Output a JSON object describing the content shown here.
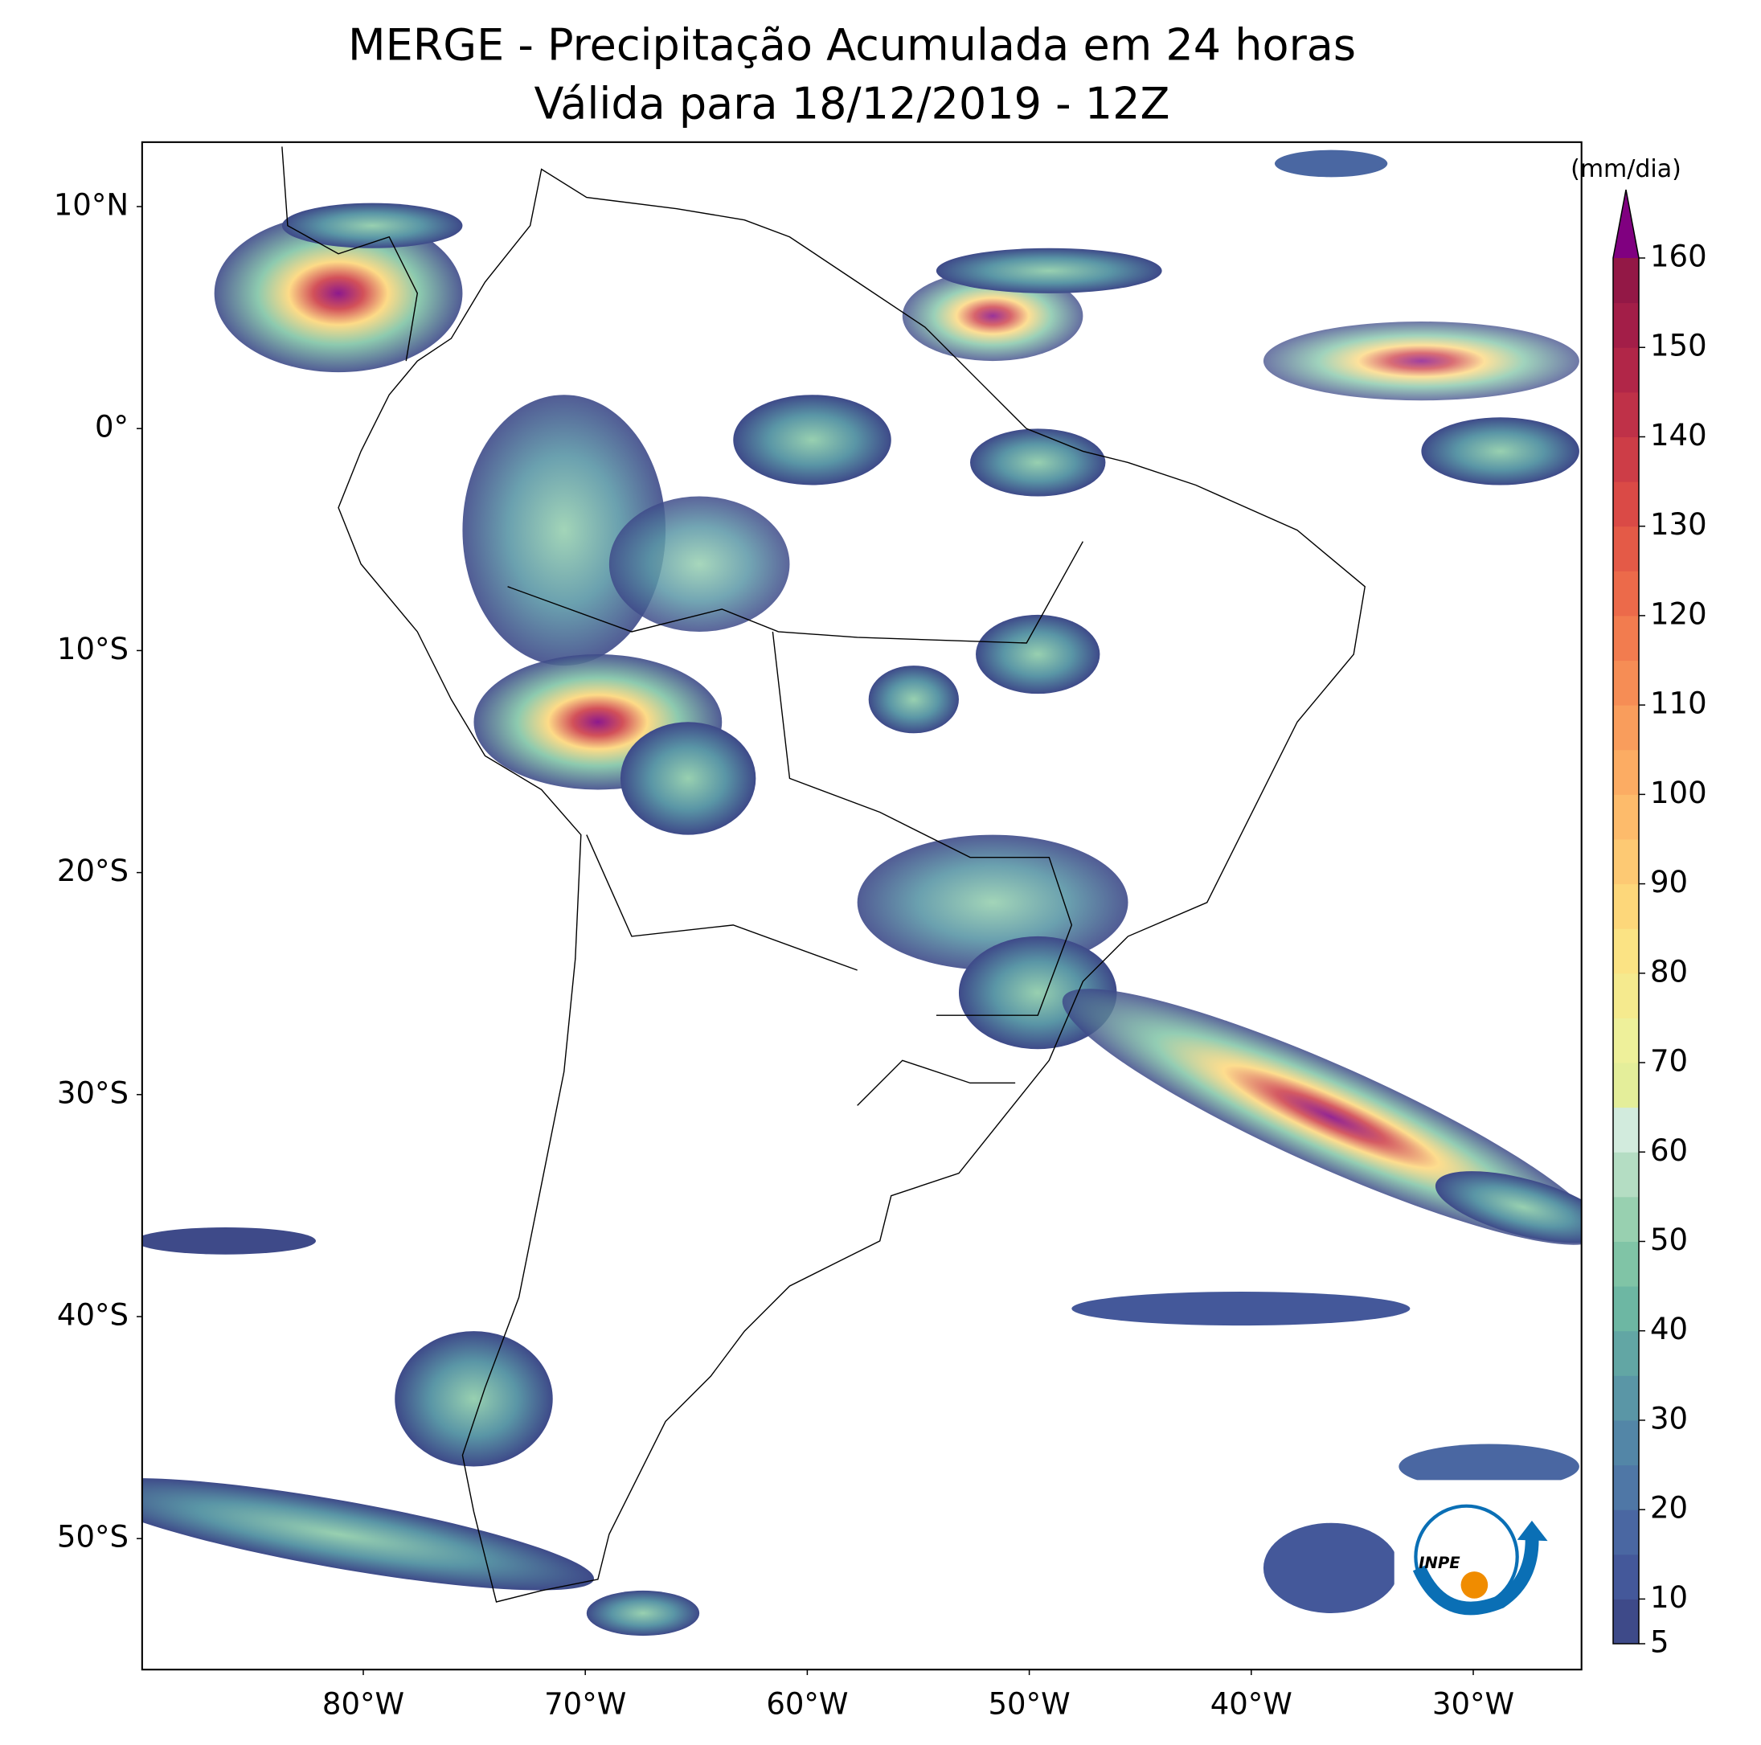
{
  "header": {
    "title": "MERGE - Precipitação Acumulada em 24 horas",
    "subtitle": "Válida para 18/12/2019 - 12Z"
  },
  "map": {
    "lat_labels": [
      "10°N",
      "0°",
      "10°S",
      "20°S",
      "30°S",
      "40°S",
      "50°S"
    ],
    "lon_labels": [
      "80°W",
      "70°W",
      "60°W",
      "50°W",
      "40°W",
      "30°W"
    ],
    "logo": "INPE"
  },
  "colorbar": {
    "unit": "(mm/dia)",
    "ticks": [
      5,
      10,
      20,
      30,
      40,
      50,
      60,
      70,
      80,
      90,
      100,
      110,
      120,
      130,
      140,
      150,
      160
    ],
    "colors": [
      "#3e4a89",
      "#44589a",
      "#4a67a2",
      "#4f77a6",
      "#5386a7",
      "#5a96a6",
      "#62a6a4",
      "#6db7a3",
      "#80c4a6",
      "#98d0b0",
      "#b4ddc3",
      "#d2ebdd",
      "#e4ee9a",
      "#eef09a",
      "#f5ea8e",
      "#fbe384",
      "#fdd77a",
      "#fdc973",
      "#fdbb6b",
      "#fcac63",
      "#f99d5c",
      "#f68d55",
      "#f27c4f",
      "#ec6a4a",
      "#e45a47",
      "#da4a46",
      "#cd3d47",
      "#bf3148",
      "#b12648",
      "#a31e48",
      "#931846"
    ],
    "over_color": "#800080"
  }
}
